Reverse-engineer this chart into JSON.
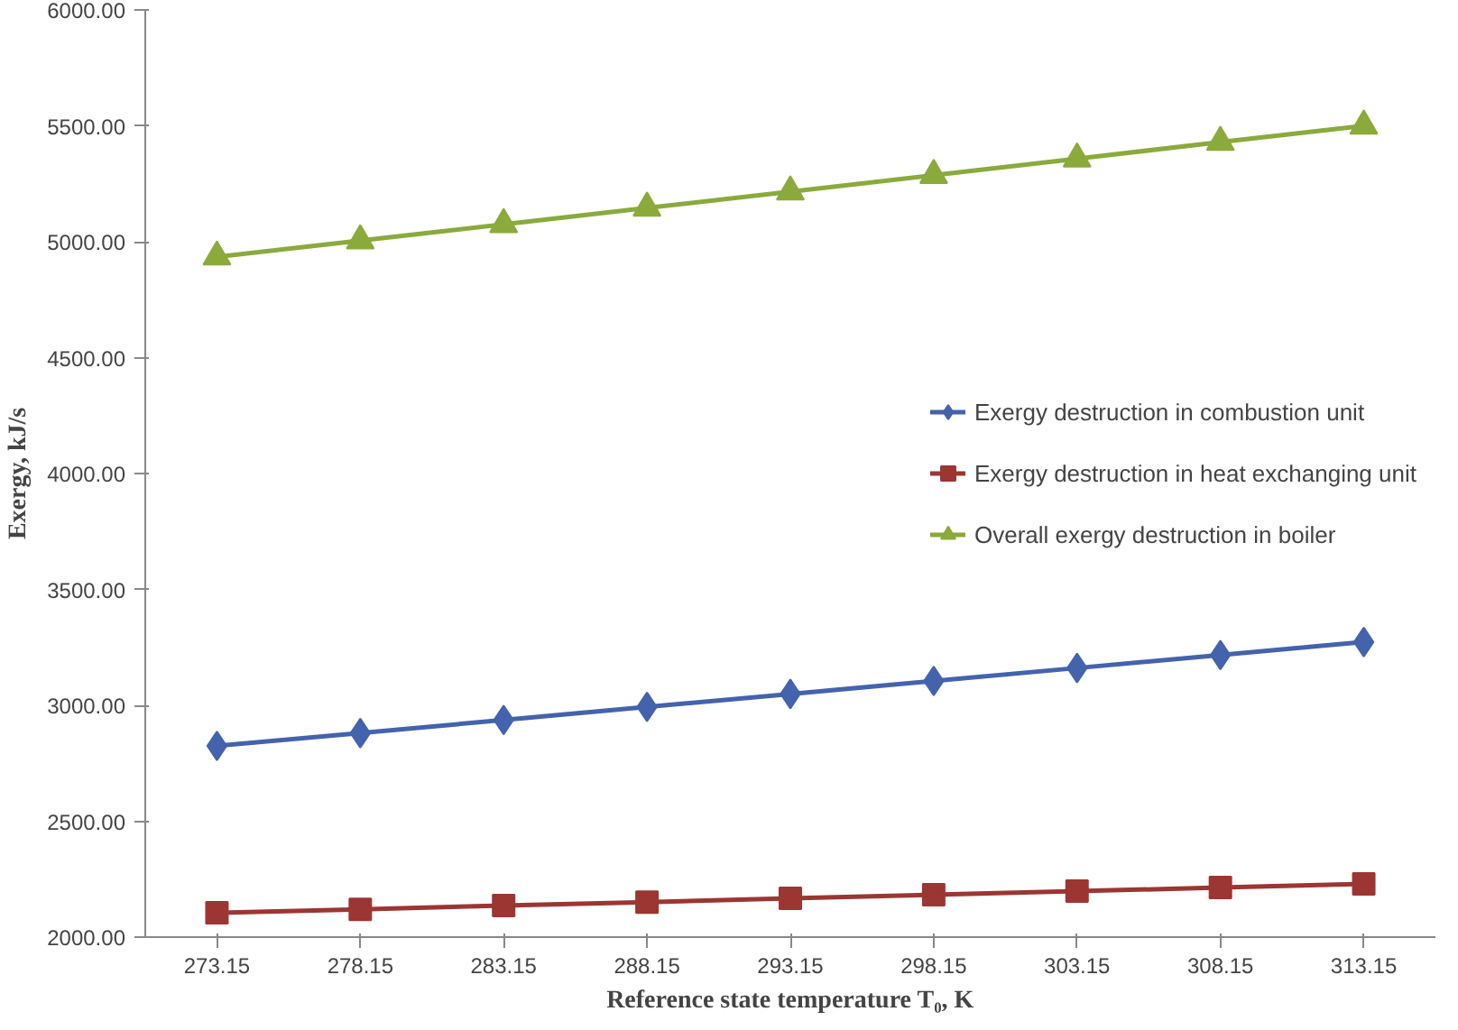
{
  "chart_data": {
    "type": "line",
    "xlabel": "Reference state temperature T₀, K",
    "ylabel": "Exergy, kJ/s",
    "categories": [
      "273.15",
      "278.15",
      "283.15",
      "288.15",
      "293.15",
      "298.15",
      "303.15",
      "308.15",
      "313.15"
    ],
    "series": [
      {
        "name": "Exergy destruction in combustion unit",
        "color": "#4463ad",
        "marker": "diamond",
        "values": [
          2825,
          2880,
          2937,
          2993,
          3049,
          3105,
          3161,
          3217,
          3273
        ]
      },
      {
        "name": "Exergy destruction in heat exchanging unit",
        "color": "#9b3633",
        "marker": "square",
        "values": [
          2105,
          2120,
          2136,
          2151,
          2167,
          2183,
          2198,
          2214,
          2230
        ]
      },
      {
        "name": "Overall exergy destruction in boiler",
        "color": "#8aaa3c",
        "marker": "triangle",
        "values": [
          4935,
          5005,
          5075,
          5146,
          5216,
          5287,
          5358,
          5430,
          5500
        ]
      }
    ],
    "ylim": [
      2000,
      6000
    ],
    "yticks": [
      {
        "value": 2000,
        "label": "2000.00"
      },
      {
        "value": 2500,
        "label": "2500.00"
      },
      {
        "value": 3000,
        "label": "3000.00"
      },
      {
        "value": 3500,
        "label": "3500.00"
      },
      {
        "value": 4000,
        "label": "4000.00"
      },
      {
        "value": 4500,
        "label": "4500.00"
      },
      {
        "value": 5000,
        "label": "5000.00"
      },
      {
        "value": 5500,
        "label": "5500.00"
      },
      {
        "value": 6000,
        "label": "6000.00"
      }
    ],
    "grid": false,
    "legend": "center right",
    "line_style": "solid"
  }
}
